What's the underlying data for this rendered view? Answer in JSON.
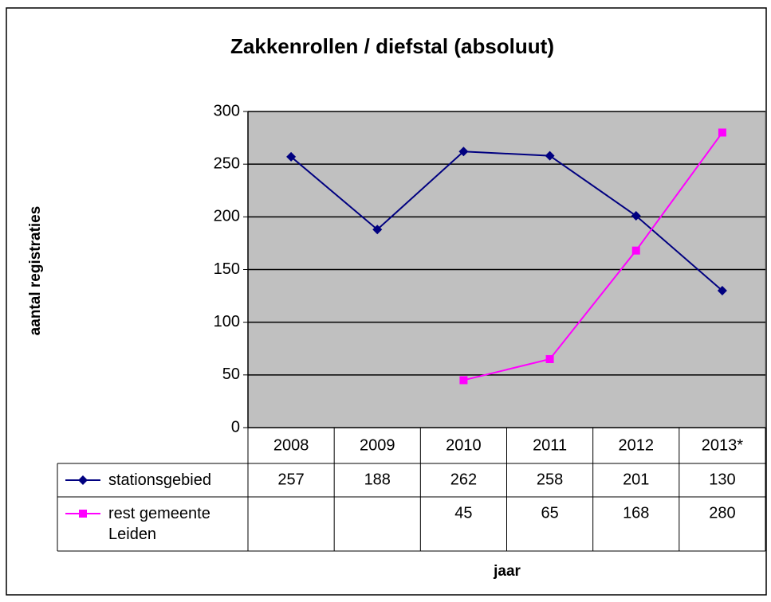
{
  "chart_data": {
    "type": "line",
    "title": "Zakkenrollen / diefstal (absoluut)",
    "y_label": "aantal registraties",
    "x_label": "jaar",
    "categories": [
      "2008",
      "2009",
      "2010",
      "2011",
      "2012",
      "2013*"
    ],
    "series": [
      {
        "name": "stationsgebied",
        "color": "#000080",
        "marker": "diamond",
        "values": [
          257,
          188,
          262,
          258,
          201,
          130
        ]
      },
      {
        "name": "rest gemeente Leiden",
        "color": "#ff00ff",
        "marker": "square",
        "values": [
          null,
          null,
          45,
          65,
          168,
          280
        ]
      }
    ],
    "ylim": [
      0,
      300
    ],
    "yticks": [
      0,
      50,
      100,
      150,
      200,
      250,
      300
    ],
    "grid": true,
    "plot_background": "#c0c0c0",
    "data_table": true
  }
}
